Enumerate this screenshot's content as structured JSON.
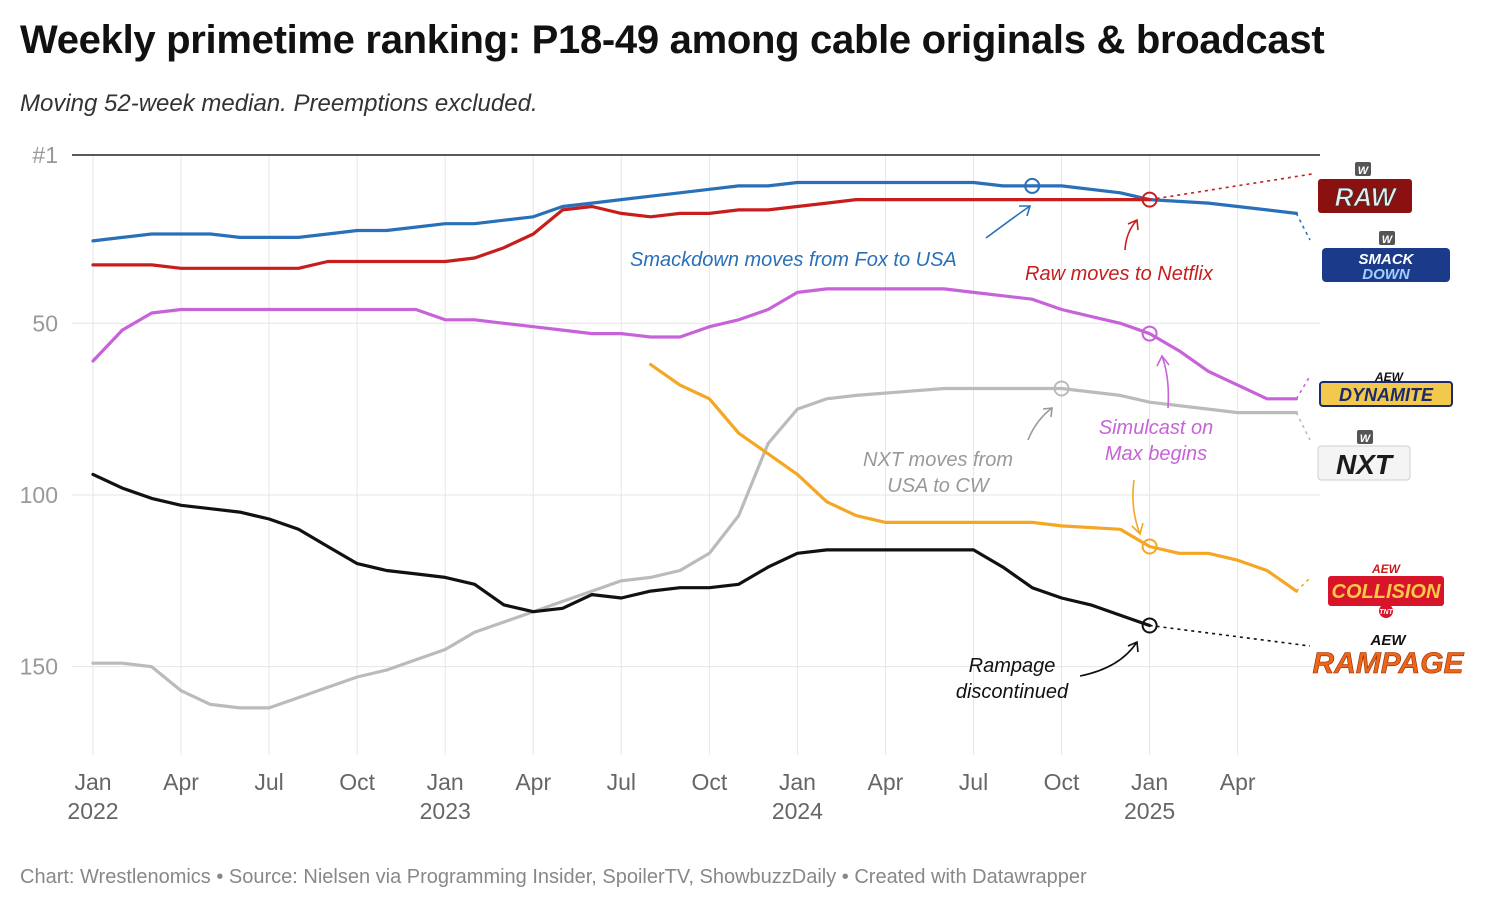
{
  "title": "Weekly primetime ranking: P18-49 among cable originals & broadcast",
  "subtitle": "Moving 52-week median. Preemptions excluded.",
  "footer": "Chart: Wrestlenomics • Source: Nielsen via Programming Insider, SpoilerTV, ShowbuzzDaily • Created with Datawrapper",
  "logos": {
    "raw": {
      "badge": "W",
      "text": "RAW"
    },
    "smackdown": {
      "badge": "W",
      "line1": "SMACK",
      "line2": "DOWN"
    },
    "dynamite": {
      "badge": "AEW",
      "text": "DYNAMITE"
    },
    "nxt": {
      "badge": "W",
      "text": "NXT"
    },
    "collision": {
      "badge": "AEW",
      "text": "COLLISION",
      "sub": "TNT"
    },
    "rampage": {
      "badge": "AEW",
      "text": "RAMPAGE"
    }
  },
  "chart_data": {
    "type": "line",
    "y_axis": {
      "reversed": true,
      "ylim": [
        1,
        180
      ],
      "ticks": [
        1,
        50,
        100,
        150
      ],
      "tick_labels": [
        "#1",
        "50",
        "100",
        "150"
      ]
    },
    "x_axis": {
      "range": [
        "2022-01",
        "2025-06"
      ],
      "ticks": [
        {
          "x": "2022-01",
          "label": "Jan",
          "year": "2022"
        },
        {
          "x": "2022-04",
          "label": "Apr",
          "year": ""
        },
        {
          "x": "2022-07",
          "label": "Jul",
          "year": ""
        },
        {
          "x": "2022-10",
          "label": "Oct",
          "year": ""
        },
        {
          "x": "2023-01",
          "label": "Jan",
          "year": "2023"
        },
        {
          "x": "2023-04",
          "label": "Apr",
          "year": ""
        },
        {
          "x": "2023-07",
          "label": "Jul",
          "year": ""
        },
        {
          "x": "2023-10",
          "label": "Oct",
          "year": ""
        },
        {
          "x": "2024-01",
          "label": "Jan",
          "year": "2024"
        },
        {
          "x": "2024-04",
          "label": "Apr",
          "year": ""
        },
        {
          "x": "2024-07",
          "label": "Jul",
          "year": ""
        },
        {
          "x": "2024-10",
          "label": "Oct",
          "year": ""
        },
        {
          "x": "2025-01",
          "label": "Jan",
          "year": "2025"
        },
        {
          "x": "2025-04",
          "label": "Apr",
          "year": ""
        }
      ]
    },
    "grid": true,
    "series": [
      {
        "key": "smackdown",
        "color": "#2a70b8",
        "points": [
          [
            "2022-01",
            26
          ],
          [
            "2022-02",
            25
          ],
          [
            "2022-03",
            24
          ],
          [
            "2022-04",
            24
          ],
          [
            "2022-05",
            24
          ],
          [
            "2022-06",
            25
          ],
          [
            "2022-07",
            25
          ],
          [
            "2022-08",
            25
          ],
          [
            "2022-09",
            24
          ],
          [
            "2022-10",
            23
          ],
          [
            "2022-11",
            23
          ],
          [
            "2022-12",
            22
          ],
          [
            "2023-01",
            21
          ],
          [
            "2023-02",
            21
          ],
          [
            "2023-03",
            20
          ],
          [
            "2023-04",
            19
          ],
          [
            "2023-05",
            16
          ],
          [
            "2023-06",
            15
          ],
          [
            "2023-07",
            14
          ],
          [
            "2023-08",
            13
          ],
          [
            "2023-09",
            12
          ],
          [
            "2023-10",
            11
          ],
          [
            "2023-11",
            10
          ],
          [
            "2023-12",
            10
          ],
          [
            "2024-01",
            9
          ],
          [
            "2024-03",
            9
          ],
          [
            "2024-05",
            9
          ],
          [
            "2024-07",
            9
          ],
          [
            "2024-08",
            10
          ],
          [
            "2024-10",
            10
          ],
          [
            "2024-12",
            12
          ],
          [
            "2025-01",
            14
          ],
          [
            "2025-03",
            15
          ],
          [
            "2025-04",
            16
          ],
          [
            "2025-05",
            17
          ],
          [
            "2025-06",
            18
          ]
        ],
        "event": {
          "x": "2024-09",
          "y": 10
        }
      },
      {
        "key": "raw",
        "color": "#c71e1d",
        "points": [
          [
            "2022-01",
            33
          ],
          [
            "2022-02",
            33
          ],
          [
            "2022-03",
            33
          ],
          [
            "2022-04",
            34
          ],
          [
            "2022-05",
            34
          ],
          [
            "2022-06",
            34
          ],
          [
            "2022-07",
            34
          ],
          [
            "2022-08",
            34
          ],
          [
            "2022-09",
            32
          ],
          [
            "2022-10",
            32
          ],
          [
            "2022-11",
            32
          ],
          [
            "2022-12",
            32
          ],
          [
            "2023-01",
            32
          ],
          [
            "2023-02",
            31
          ],
          [
            "2023-03",
            28
          ],
          [
            "2023-04",
            24
          ],
          [
            "2023-05",
            17
          ],
          [
            "2023-06",
            16
          ],
          [
            "2023-07",
            18
          ],
          [
            "2023-08",
            19
          ],
          [
            "2023-09",
            18
          ],
          [
            "2023-10",
            18
          ],
          [
            "2023-11",
            17
          ],
          [
            "2023-12",
            17
          ],
          [
            "2024-01",
            16
          ],
          [
            "2024-02",
            15
          ],
          [
            "2024-03",
            14
          ],
          [
            "2024-06",
            14
          ],
          [
            "2024-09",
            14
          ],
          [
            "2024-12",
            14
          ],
          [
            "2025-01",
            14
          ]
        ],
        "event": {
          "x": "2025-01",
          "y": 14
        }
      },
      {
        "key": "dynamite",
        "color": "#c763d8",
        "points": [
          [
            "2022-01",
            61
          ],
          [
            "2022-02",
            52
          ],
          [
            "2022-03",
            47
          ],
          [
            "2022-04",
            46
          ],
          [
            "2022-05",
            46
          ],
          [
            "2022-06",
            46
          ],
          [
            "2022-07",
            46
          ],
          [
            "2022-08",
            46
          ],
          [
            "2022-09",
            46
          ],
          [
            "2022-10",
            46
          ],
          [
            "2022-11",
            46
          ],
          [
            "2022-12",
            46
          ],
          [
            "2023-01",
            49
          ],
          [
            "2023-02",
            49
          ],
          [
            "2023-03",
            50
          ],
          [
            "2023-04",
            51
          ],
          [
            "2023-05",
            52
          ],
          [
            "2023-06",
            53
          ],
          [
            "2023-07",
            53
          ],
          [
            "2023-08",
            54
          ],
          [
            "2023-09",
            54
          ],
          [
            "2023-10",
            51
          ],
          [
            "2023-11",
            49
          ],
          [
            "2023-12",
            46
          ],
          [
            "2024-01",
            41
          ],
          [
            "2024-02",
            40
          ],
          [
            "2024-03",
            40
          ],
          [
            "2024-06",
            40
          ],
          [
            "2024-07",
            41
          ],
          [
            "2024-09",
            43
          ],
          [
            "2024-10",
            46
          ],
          [
            "2024-11",
            48
          ],
          [
            "2024-12",
            50
          ],
          [
            "2025-01",
            53
          ],
          [
            "2025-02",
            58
          ],
          [
            "2025-03",
            64
          ],
          [
            "2025-04",
            68
          ],
          [
            "2025-05",
            72
          ],
          [
            "2025-06",
            72
          ]
        ],
        "event": {
          "x": "2025-01",
          "y": 53
        }
      },
      {
        "key": "nxt",
        "color": "#bbbbbb",
        "points": [
          [
            "2022-01",
            149
          ],
          [
            "2022-02",
            149
          ],
          [
            "2022-03",
            150
          ],
          [
            "2022-04",
            157
          ],
          [
            "2022-05",
            161
          ],
          [
            "2022-06",
            162
          ],
          [
            "2022-07",
            162
          ],
          [
            "2022-08",
            159
          ],
          [
            "2022-09",
            156
          ],
          [
            "2022-10",
            153
          ],
          [
            "2022-11",
            151
          ],
          [
            "2022-12",
            148
          ],
          [
            "2023-01",
            145
          ],
          [
            "2023-02",
            140
          ],
          [
            "2023-03",
            137
          ],
          [
            "2023-04",
            134
          ],
          [
            "2023-05",
            131
          ],
          [
            "2023-06",
            128
          ],
          [
            "2023-07",
            125
          ],
          [
            "2023-08",
            124
          ],
          [
            "2023-09",
            122
          ],
          [
            "2023-10",
            117
          ],
          [
            "2023-11",
            106
          ],
          [
            "2023-12",
            85
          ],
          [
            "2024-01",
            75
          ],
          [
            "2024-02",
            72
          ],
          [
            "2024-03",
            71
          ],
          [
            "2024-06",
            69
          ],
          [
            "2024-09",
            69
          ],
          [
            "2024-10",
            69
          ],
          [
            "2024-12",
            71
          ],
          [
            "2025-01",
            73
          ],
          [
            "2025-03",
            75
          ],
          [
            "2025-04",
            76
          ],
          [
            "2025-06",
            76
          ]
        ],
        "event": {
          "x": "2024-10",
          "y": 69
        }
      },
      {
        "key": "collision",
        "color": "#f5a623",
        "points": [
          [
            "2023-08",
            62
          ],
          [
            "2023-09",
            68
          ],
          [
            "2023-10",
            72
          ],
          [
            "2023-11",
            82
          ],
          [
            "2023-12",
            88
          ],
          [
            "2024-01",
            94
          ],
          [
            "2024-02",
            102
          ],
          [
            "2024-03",
            106
          ],
          [
            "2024-04",
            108
          ],
          [
            "2024-06",
            108
          ],
          [
            "2024-08",
            108
          ],
          [
            "2024-09",
            108
          ],
          [
            "2024-10",
            109
          ],
          [
            "2024-12",
            110
          ],
          [
            "2025-01",
            115
          ],
          [
            "2025-02",
            117
          ],
          [
            "2025-03",
            117
          ],
          [
            "2025-04",
            119
          ],
          [
            "2025-05",
            122
          ],
          [
            "2025-06",
            128
          ]
        ],
        "event": {
          "x": "2025-01",
          "y": 115
        }
      },
      {
        "key": "rampage",
        "color": "#111111",
        "points": [
          [
            "2022-01",
            94
          ],
          [
            "2022-02",
            98
          ],
          [
            "2022-03",
            101
          ],
          [
            "2022-04",
            103
          ],
          [
            "2022-05",
            104
          ],
          [
            "2022-06",
            105
          ],
          [
            "2022-07",
            107
          ],
          [
            "2022-08",
            110
          ],
          [
            "2022-09",
            115
          ],
          [
            "2022-10",
            120
          ],
          [
            "2022-11",
            122
          ],
          [
            "2022-12",
            123
          ],
          [
            "2023-01",
            124
          ],
          [
            "2023-02",
            126
          ],
          [
            "2023-03",
            132
          ],
          [
            "2023-04",
            134
          ],
          [
            "2023-05",
            133
          ],
          [
            "2023-06",
            129
          ],
          [
            "2023-07",
            130
          ],
          [
            "2023-08",
            128
          ],
          [
            "2023-09",
            127
          ],
          [
            "2023-10",
            127
          ],
          [
            "2023-11",
            126
          ],
          [
            "2023-12",
            121
          ],
          [
            "2024-01",
            117
          ],
          [
            "2024-02",
            116
          ],
          [
            "2024-04",
            116
          ],
          [
            "2024-06",
            116
          ],
          [
            "2024-07",
            116
          ],
          [
            "2024-08",
            121
          ],
          [
            "2024-09",
            127
          ],
          [
            "2024-10",
            130
          ],
          [
            "2024-11",
            132
          ],
          [
            "2024-12",
            135
          ],
          [
            "2025-01",
            138
          ]
        ],
        "event": {
          "x": "2025-01",
          "y": 138
        }
      }
    ],
    "annotations": [
      {
        "key": "smackdown",
        "text": "Smackdown moves from Fox to USA",
        "color": "#2a70b8"
      },
      {
        "key": "raw",
        "text": "Raw moves to Netflix",
        "color": "#c71e1d"
      },
      {
        "key": "nxt",
        "lines": [
          "NXT moves from",
          "USA to CW"
        ],
        "color": "#999999"
      },
      {
        "key": "dynamite",
        "lines": [
          "Simulcast on",
          "Max begins"
        ],
        "color": "#c763d8"
      },
      {
        "key": "rampage",
        "lines": [
          "Rampage",
          "discontinued"
        ],
        "color": "#111111"
      }
    ]
  }
}
